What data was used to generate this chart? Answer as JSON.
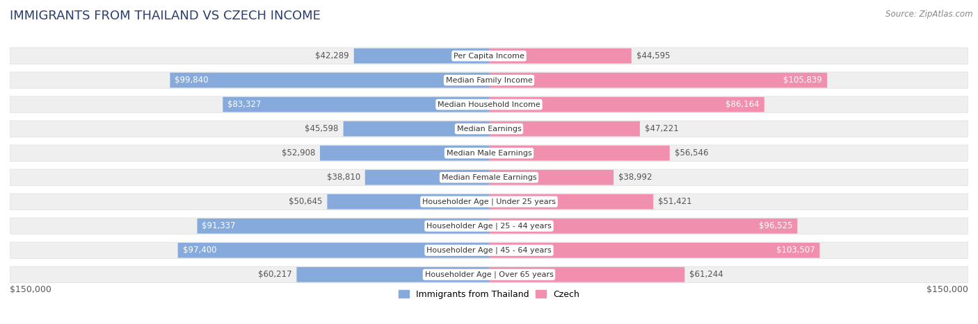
{
  "title": "IMMIGRANTS FROM THAILAND VS CZECH INCOME",
  "source": "Source: ZipAtlas.com",
  "categories": [
    "Per Capita Income",
    "Median Family Income",
    "Median Household Income",
    "Median Earnings",
    "Median Male Earnings",
    "Median Female Earnings",
    "Householder Age | Under 25 years",
    "Householder Age | 25 - 44 years",
    "Householder Age | 45 - 64 years",
    "Householder Age | Over 65 years"
  ],
  "thailand_values": [
    42289,
    99840,
    83327,
    45598,
    52908,
    38810,
    50645,
    91337,
    97400,
    60217
  ],
  "czech_values": [
    44595,
    105839,
    86164,
    47221,
    56546,
    38992,
    51421,
    96525,
    103507,
    61244
  ],
  "thailand_color": "#85AADB",
  "czech_color": "#F08FAE",
  "thailand_color_dark": "#5B8EC7",
  "czech_color_dark": "#E8638C",
  "thailand_label": "Immigrants from Thailand",
  "czech_label": "Czech",
  "xlim": 150000,
  "x_tick_label_left": "$150,000",
  "x_tick_label_right": "$150,000",
  "bar_height": 0.62,
  "row_bg_color": "#EFEFEF",
  "row_border_color": "#DDDDDD",
  "title_fontsize": 13,
  "source_fontsize": 8.5,
  "bar_label_fontsize": 8.5,
  "cat_label_fontsize": 8.0,
  "inside_label_threshold_ratio": 0.43
}
